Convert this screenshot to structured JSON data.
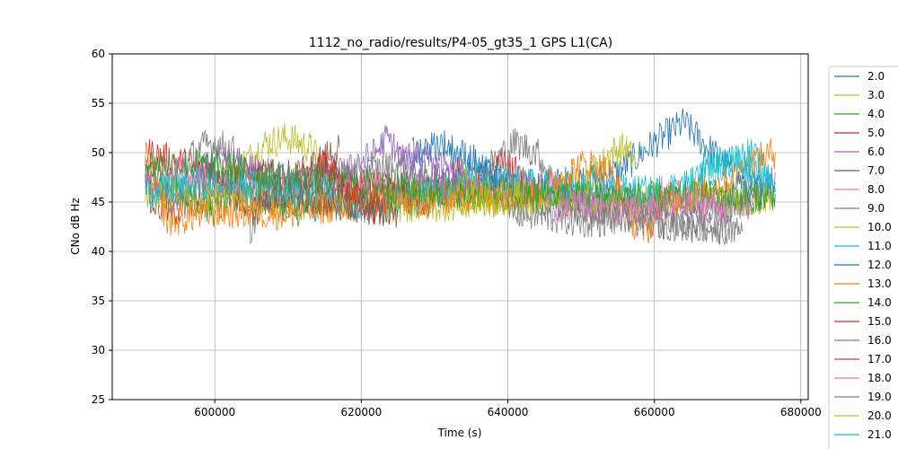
{
  "chart_data": {
    "type": "line",
    "title": "1112_no_radio/results/P4-05_gt35_1 GPS L1(CA)",
    "xlabel": "Time (s)",
    "ylabel": "CNo dB Hz",
    "xlim": [
      586000,
      681000
    ],
    "ylim": [
      25,
      60
    ],
    "x_ticks": [
      600000,
      620000,
      640000,
      660000,
      680000
    ],
    "x_tick_labels": [
      "600000",
      "620000",
      "640000",
      "660000",
      "680000"
    ],
    "y_ticks": [
      25,
      30,
      35,
      40,
      45,
      50,
      55,
      60
    ],
    "y_tick_labels": [
      "25",
      "30",
      "35",
      "40",
      "45",
      "50",
      "55",
      "60"
    ],
    "grid": true,
    "legend_position": "right, outside plot",
    "series": [
      {
        "name": "2.0",
        "color": "#1f77b4",
        "x": [
          590500,
          596000,
          603000,
          612000,
          621000,
          630000,
          640000,
          648000,
          655000,
          660000,
          664000,
          668000,
          672000,
          676500
        ],
        "values": [
          47,
          46,
          45.5,
          44.5,
          45,
          46,
          46.5,
          47,
          48,
          51,
          53,
          50,
          47,
          46
        ]
      },
      {
        "name": "3.0",
        "color": "#bcbd22",
        "x": [
          598000,
          601000,
          604000,
          607000,
          610000,
          613000,
          615500,
          620000,
          630000,
          645000,
          652000,
          654000,
          656000,
          657500
        ],
        "values": [
          46,
          47,
          49,
          51,
          51.5,
          50.5,
          48,
          45.5,
          45,
          45.3,
          48,
          50,
          50.5,
          49
        ]
      },
      {
        "name": "4.0",
        "color": "#2ca02c",
        "x": [
          590500,
          593000,
          596000,
          600000,
          603000,
          606000,
          609000,
          611000,
          615000,
          622000,
          632000,
          645000,
          660000,
          675000
        ],
        "values": [
          48,
          47,
          46,
          44,
          46,
          47,
          45,
          44,
          45.5,
          46.6,
          46,
          45.5,
          45.1,
          45
        ]
      },
      {
        "name": "5.0",
        "color": "#d62728",
        "x": [
          590500,
          600000,
          612000,
          620000,
          625000,
          628000,
          630000,
          633000,
          636000,
          639000,
          641000,
          643000
        ],
        "values": [
          50,
          48,
          47.5,
          47,
          46,
          44,
          46,
          48,
          47,
          49,
          48,
          46
        ]
      },
      {
        "name": "6.0",
        "color": "#9467bd",
        "x": [
          590500,
          592000,
          594000,
          596000,
          598000,
          600000,
          603000,
          606000,
          612000,
          618000,
          622000,
          623500,
          626000,
          630000,
          660000,
          665000,
          670000,
          674000,
          676500
        ],
        "values": [
          47,
          46,
          45,
          46,
          48,
          49,
          49,
          48,
          47,
          48,
          50,
          51.5,
          49,
          47,
          45,
          44,
          44,
          46,
          48
        ]
      },
      {
        "name": "7.0",
        "color": "#8c564b",
        "x": [
          591000,
          594000,
          597000,
          599000,
          601000,
          604000,
          608000,
          611000,
          614000,
          617000
        ],
        "values": [
          45,
          44,
          44.5,
          48,
          47,
          45,
          46.5,
          47.5,
          49,
          50.5
        ]
      },
      {
        "name": "8.0",
        "color": "#e377c2",
        "x": [
          590500,
          593000,
          596000,
          599000,
          602000,
          644000,
          646000,
          649000,
          652000,
          655000,
          658000,
          661000,
          664000,
          668000,
          671000,
          673000
        ],
        "values": [
          47,
          48,
          48,
          47,
          46.5,
          46,
          47,
          45,
          44,
          45,
          44.5,
          46,
          45.5,
          45,
          45.5,
          44
        ]
      },
      {
        "name": "9.0",
        "color": "#7f7f7f",
        "x": [
          596000,
          598000,
          600000,
          603000,
          605000,
          607000,
          610000,
          614000,
          618000,
          624000,
          630000,
          634000,
          638000,
          641000,
          644000,
          648000,
          660000,
          672000
        ],
        "values": [
          49,
          50.5,
          51,
          50,
          42,
          48,
          46,
          47.5,
          48,
          48.5,
          47.5,
          46,
          49,
          51,
          50,
          44.5,
          43,
          42
        ]
      },
      {
        "name": "10.0",
        "color": "#bcbd22",
        "x": [
          590500,
          610000,
          620000,
          630000,
          635000,
          640000,
          650000,
          660000,
          670000,
          676500
        ],
        "values": [
          46,
          45,
          44.5,
          44.5,
          45,
          45.2,
          45.5,
          45.4,
          45.3,
          45.3
        ]
      },
      {
        "name": "11.0",
        "color": "#17becf",
        "x": [
          590500,
          600000,
          615000,
          622000,
          626000,
          630000,
          634000,
          645000,
          660000,
          665000,
          670000,
          673000,
          676500
        ],
        "values": [
          46,
          47,
          46,
          44,
          45,
          46,
          48,
          46.5,
          46,
          47,
          49,
          50,
          47
        ]
      },
      {
        "name": "12.0",
        "color": "#1f77b4",
        "x": [
          627000,
          629000,
          631000,
          633000,
          635000,
          637000,
          639000
        ],
        "values": [
          50,
          50.5,
          51,
          50,
          49.5,
          48,
          47
        ]
      },
      {
        "name": "13.0",
        "color": "#ff7f0e",
        "x": [
          590500,
          593500,
          600000,
          610000,
          620000,
          645000,
          648000,
          651000,
          654000,
          657000,
          659000,
          661000,
          670000,
          673000,
          676500
        ],
        "values": [
          50,
          43,
          44,
          43.8,
          45,
          46,
          48,
          49,
          48,
          43,
          42,
          45,
          47,
          49,
          50
        ]
      },
      {
        "name": "14.0",
        "color": "#2ca02c",
        "x": [
          590500,
          600000,
          610000,
          620000,
          630000,
          640000,
          650000,
          660000,
          670000,
          676500
        ],
        "values": [
          49,
          48.6,
          47.5,
          46.7,
          46.2,
          45.9,
          45.5,
          45.4,
          45.6,
          45.8
        ]
      },
      {
        "name": "15.0",
        "color": "#d62728",
        "x": [
          614000,
          616000,
          618000,
          620000,
          623000
        ],
        "values": [
          49,
          48,
          46,
          45,
          44
        ]
      },
      {
        "name": "16.0",
        "color": "#9467bd",
        "x": [
          625000,
          628000,
          631000,
          634000
        ],
        "values": [
          49,
          50,
          48.5,
          47
        ]
      },
      {
        "name": "17.0",
        "color": "#8c564b",
        "x": [
          605000,
          610000,
          616000,
          620000,
          625000
        ],
        "values": [
          44,
          46,
          45,
          44.5,
          44
        ]
      },
      {
        "name": "18.0",
        "color": "#e377c2",
        "x": [
          645000,
          650000,
          655000,
          660000,
          665000,
          670000
        ],
        "values": [
          44,
          45,
          44,
          44.2,
          45,
          44.5
        ]
      },
      {
        "name": "19.0",
        "color": "#7f7f7f",
        "x": [
          640000,
          645000,
          650000,
          655000,
          660000,
          665000,
          670000
        ],
        "values": [
          44,
          43.5,
          43,
          43.2,
          43,
          42.5,
          42.3
        ]
      },
      {
        "name": "20.0",
        "color": "#bcbd22",
        "x": [
          632000,
          634000,
          636000,
          638000,
          640000,
          642000
        ],
        "values": [
          45,
          47,
          46,
          45,
          46,
          45.5
        ]
      },
      {
        "name": "21.0",
        "color": "#17becf",
        "x": [
          666000,
          668000,
          670000,
          672000,
          674000,
          676500
        ],
        "values": [
          48,
          49,
          49.5,
          49,
          48,
          46
        ]
      }
    ]
  }
}
